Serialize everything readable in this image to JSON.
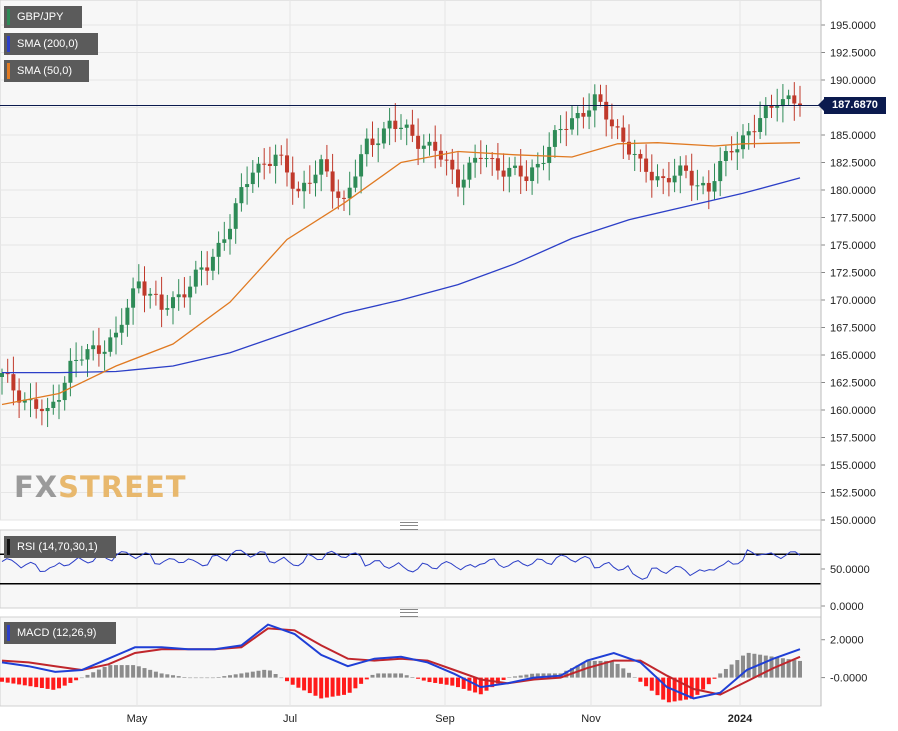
{
  "chart_data": [
    {
      "type": "candlestick",
      "symbol": "GBP/JPY",
      "last_price": "187.6870",
      "y_ticks": [
        "195.0000",
        "192.5000",
        "190.0000",
        "187.5000",
        "185.0000",
        "182.5000",
        "180.0000",
        "177.5000",
        "175.0000",
        "172.5000",
        "170.0000",
        "167.5000",
        "165.0000",
        "162.5000",
        "160.0000",
        "157.5000",
        "155.0000",
        "152.5000",
        "150.0000"
      ],
      "ylim": [
        150,
        196
      ],
      "x_ticks": [
        "May",
        "Jul",
        "Sep",
        "Nov",
        "2024"
      ],
      "series": [
        {
          "name": "SMA (200,0)",
          "color": "#2c3fc7"
        },
        {
          "name": "SMA (50,0)",
          "color": "#e07a22"
        }
      ],
      "sma200_points": [
        [
          0,
          163.4
        ],
        [
          10,
          163.4
        ],
        [
          20,
          163.5
        ],
        [
          30,
          164.0
        ],
        [
          40,
          165.2
        ],
        [
          50,
          167.0
        ],
        [
          60,
          168.8
        ],
        [
          70,
          170.0
        ],
        [
          80,
          171.4
        ],
        [
          90,
          173.3
        ],
        [
          100,
          175.6
        ],
        [
          110,
          177.3
        ],
        [
          120,
          178.5
        ],
        [
          130,
          179.7
        ],
        [
          140,
          181.1
        ]
      ],
      "sma50_points": [
        [
          0,
          160.5
        ],
        [
          10,
          161.5
        ],
        [
          20,
          164.0
        ],
        [
          30,
          166.0
        ],
        [
          40,
          169.8
        ],
        [
          50,
          175.5
        ],
        [
          60,
          178.8
        ],
        [
          70,
          182.5
        ],
        [
          80,
          183.5
        ],
        [
          90,
          183.2
        ],
        [
          100,
          183.0
        ],
        [
          108,
          184.2
        ],
        [
          115,
          184.3
        ],
        [
          125,
          184.0
        ],
        [
          130,
          184.2
        ],
        [
          140,
          184.3
        ]
      ],
      "ohlc_anchors": [
        [
          0,
          163.0
        ],
        [
          4,
          161.0
        ],
        [
          8,
          159.5
        ],
        [
          12,
          164.0
        ],
        [
          16,
          165.5
        ],
        [
          20,
          166.5
        ],
        [
          24,
          172.0
        ],
        [
          28,
          169.0
        ],
        [
          32,
          171.0
        ],
        [
          36,
          173.0
        ],
        [
          40,
          177.0
        ],
        [
          44,
          182.0
        ],
        [
          48,
          183.0
        ],
        [
          52,
          180.0
        ],
        [
          56,
          182.0
        ],
        [
          60,
          179.0
        ],
        [
          64,
          184.0
        ],
        [
          68,
          186.0
        ],
        [
          72,
          185.0
        ],
        [
          76,
          183.5
        ],
        [
          80,
          181.0
        ],
        [
          84,
          183.0
        ],
        [
          88,
          182.0
        ],
        [
          92,
          181.0
        ],
        [
          96,
          184.0
        ],
        [
          100,
          186.5
        ],
        [
          104,
          188.0
        ],
        [
          108,
          185.5
        ],
        [
          112,
          182.0
        ],
        [
          116,
          181.0
        ],
        [
          120,
          181.5
        ],
        [
          124,
          180.0
        ],
        [
          128,
          184.0
        ],
        [
          132,
          185.5
        ],
        [
          136,
          188.5
        ],
        [
          140,
          187.7
        ]
      ]
    },
    {
      "type": "line",
      "name": "RSI (14,70,30,1)",
      "y_ticks": [
        "50.0000",
        "0.0000"
      ],
      "ylim": [
        0,
        100
      ],
      "overbought": 70,
      "oversold": 30,
      "values": [
        60,
        55,
        50,
        58,
        62,
        65,
        70,
        68,
        60,
        62,
        58,
        65,
        72,
        70,
        62,
        58,
        66,
        70,
        68,
        58,
        55,
        50,
        54,
        56,
        52,
        60,
        56,
        58,
        60,
        65,
        63,
        55,
        52,
        40,
        48,
        50,
        45,
        52,
        60,
        72,
        68,
        70
      ]
    },
    {
      "type": "line",
      "name": "MACD (12,26,9)",
      "y_ticks": [
        "2.0000",
        "-0.0000"
      ],
      "ylim": [
        -1.5,
        3.2
      ],
      "macd": [
        0.8,
        0.6,
        0.3,
        0.4,
        1.0,
        1.6,
        1.6,
        1.5,
        1.5,
        1.7,
        2.8,
        2.3,
        1.2,
        0.6,
        1.0,
        1.1,
        0.8,
        0.2,
        -0.5,
        -0.3,
        0.0,
        0.1,
        0.9,
        1.3,
        0.8,
        -0.5,
        -1.1,
        -0.8,
        0.4,
        1.0,
        1.5
      ],
      "signal": [
        0.9,
        0.8,
        0.6,
        0.4,
        0.7,
        1.3,
        1.5,
        1.5,
        1.5,
        1.6,
        2.6,
        2.5,
        1.7,
        1.0,
        0.9,
        1.0,
        0.9,
        0.4,
        -0.1,
        -0.3,
        -0.1,
        0.0,
        0.5,
        0.9,
        0.9,
        0.1,
        -0.6,
        -0.9,
        -0.2,
        0.5,
        1.1
      ]
    }
  ]
}
